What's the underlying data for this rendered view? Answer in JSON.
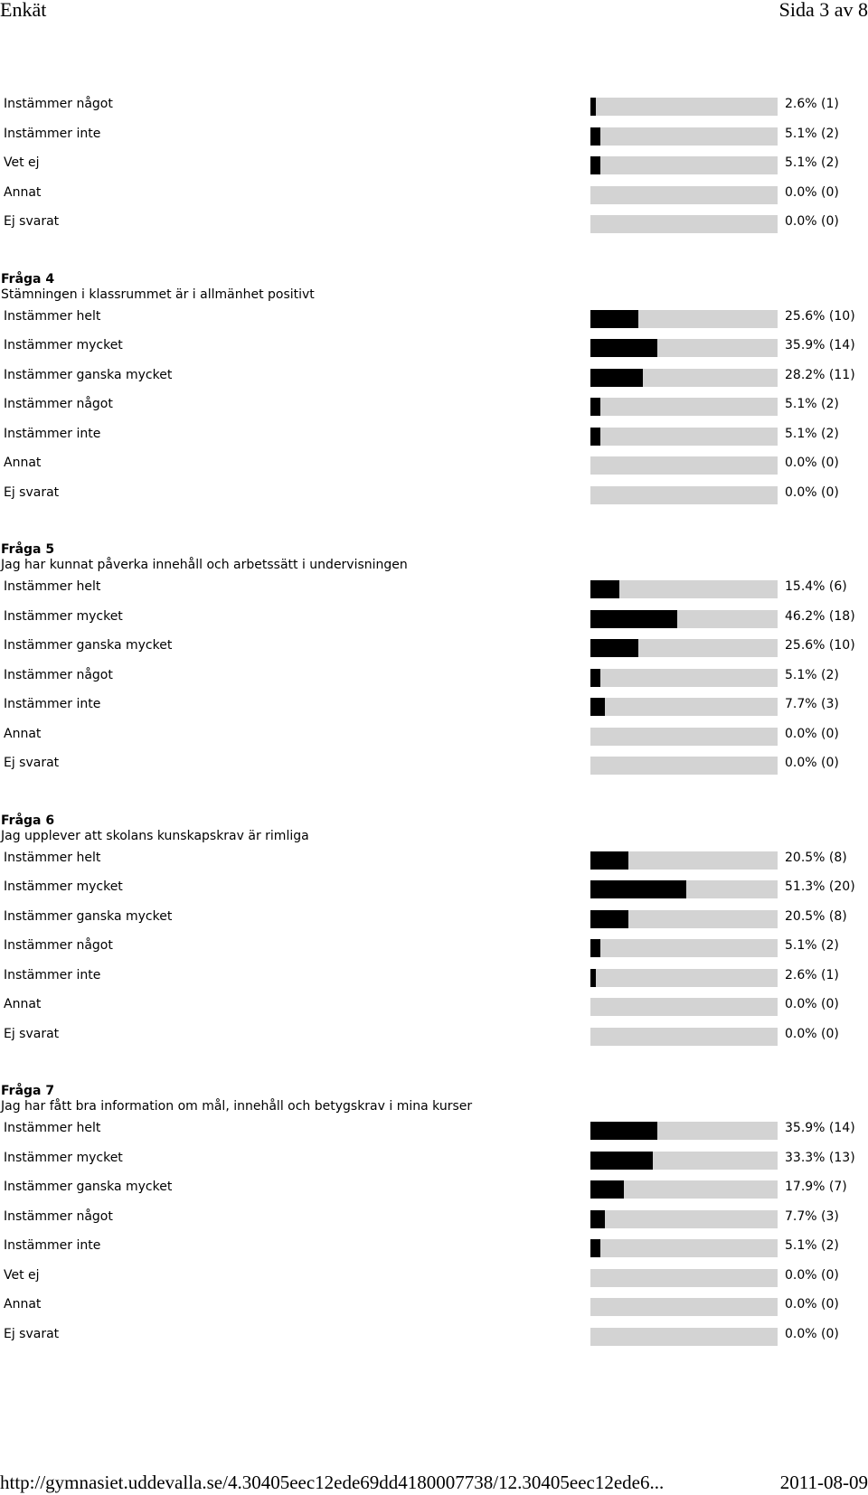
{
  "header": {
    "title": "Enkät",
    "page": "Sida 3 av 8"
  },
  "footer": {
    "url": "http://gymnasiet.uddevalla.se/4.30405eec12ede69dd4180007738/12.30405eec12ede6...",
    "date": "2011-08-09"
  },
  "sections": [
    {
      "number": "",
      "text": "",
      "rows": [
        {
          "label": "Instämmer något",
          "value": "2.6% (1)",
          "percent": 2.6
        },
        {
          "label": "Instämmer inte",
          "value": "5.1% (2)",
          "percent": 5.1
        },
        {
          "label": "Vet ej",
          "value": "5.1% (2)",
          "percent": 5.1
        },
        {
          "label": "Annat",
          "value": "0.0% (0)",
          "percent": 0.0
        },
        {
          "label": "Ej svarat",
          "value": "0.0% (0)",
          "percent": 0.0
        }
      ]
    },
    {
      "number": "Fråga 4",
      "text": "Stämningen i klassrummet är i allmänhet positivt",
      "rows": [
        {
          "label": "Instämmer helt",
          "value": "25.6% (10)",
          "percent": 25.6
        },
        {
          "label": "Instämmer mycket",
          "value": "35.9% (14)",
          "percent": 35.9
        },
        {
          "label": "Instämmer ganska mycket",
          "value": "28.2% (11)",
          "percent": 28.2
        },
        {
          "label": "Instämmer något",
          "value": "5.1% (2)",
          "percent": 5.1
        },
        {
          "label": "Instämmer inte",
          "value": "5.1% (2)",
          "percent": 5.1
        },
        {
          "label": "Annat",
          "value": "0.0% (0)",
          "percent": 0.0
        },
        {
          "label": "Ej svarat",
          "value": "0.0% (0)",
          "percent": 0.0
        }
      ]
    },
    {
      "number": "Fråga 5",
      "text": "Jag har kunnat påverka innehåll och arbetssätt i undervisningen",
      "rows": [
        {
          "label": "Instämmer helt",
          "value": "15.4% (6)",
          "percent": 15.4
        },
        {
          "label": "Instämmer mycket",
          "value": "46.2% (18)",
          "percent": 46.2
        },
        {
          "label": "Instämmer ganska mycket",
          "value": "25.6% (10)",
          "percent": 25.6
        },
        {
          "label": "Instämmer något",
          "value": "5.1% (2)",
          "percent": 5.1
        },
        {
          "label": "Instämmer inte",
          "value": "7.7% (3)",
          "percent": 7.7
        },
        {
          "label": "Annat",
          "value": "0.0% (0)",
          "percent": 0.0
        },
        {
          "label": "Ej svarat",
          "value": "0.0% (0)",
          "percent": 0.0
        }
      ]
    },
    {
      "number": "Fråga 6",
      "text": "Jag upplever att skolans kunskapskrav är rimliga",
      "rows": [
        {
          "label": "Instämmer helt",
          "value": "20.5% (8)",
          "percent": 20.5
        },
        {
          "label": "Instämmer mycket",
          "value": "51.3% (20)",
          "percent": 51.3
        },
        {
          "label": "Instämmer ganska mycket",
          "value": "20.5% (8)",
          "percent": 20.5
        },
        {
          "label": "Instämmer något",
          "value": "5.1% (2)",
          "percent": 5.1
        },
        {
          "label": "Instämmer inte",
          "value": "2.6% (1)",
          "percent": 2.6
        },
        {
          "label": "Annat",
          "value": "0.0% (0)",
          "percent": 0.0
        },
        {
          "label": "Ej svarat",
          "value": "0.0% (0)",
          "percent": 0.0
        }
      ]
    },
    {
      "number": "Fråga 7",
      "text": "Jag har fått bra information om mål, innehåll och betygskrav i mina kurser",
      "rows": [
        {
          "label": "Instämmer helt",
          "value": "35.9% (14)",
          "percent": 35.9
        },
        {
          "label": "Instämmer mycket",
          "value": "33.3% (13)",
          "percent": 33.3
        },
        {
          "label": "Instämmer ganska mycket",
          "value": "17.9% (7)",
          "percent": 17.9
        },
        {
          "label": "Instämmer något",
          "value": "7.7% (3)",
          "percent": 7.7
        },
        {
          "label": "Instämmer inte",
          "value": "5.1% (2)",
          "percent": 5.1
        },
        {
          "label": "Vet ej",
          "value": "0.0% (0)",
          "percent": 0.0
        },
        {
          "label": "Annat",
          "value": "0.0% (0)",
          "percent": 0.0
        },
        {
          "label": "Ej svarat",
          "value": "0.0% (0)",
          "percent": 0.0
        }
      ]
    }
  ]
}
